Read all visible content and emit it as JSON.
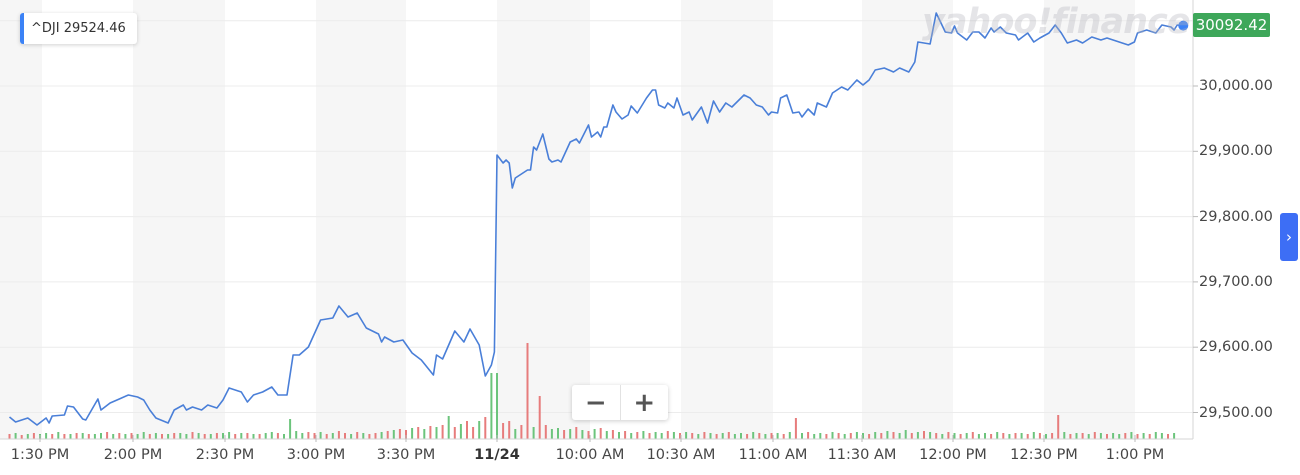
{
  "symbol_tooltip": "^DJI 29524.46",
  "last_price_label": "30092.42",
  "watermark": "yahoo!finance",
  "zoom_out_label": "−",
  "zoom_in_label": "+",
  "side_button_icon": "chevron-right-icon",
  "colors": {
    "line": "#4a7fd8",
    "up": "#6cc47c",
    "down": "#e77c7c",
    "last_tag": "#3ea75a",
    "accent": "#3d6ef5"
  },
  "chart_data": {
    "type": "line",
    "title": "",
    "ylim": [
      29460,
      30135
    ],
    "y_ticks": [
      "30,000.00",
      "29,900.00",
      "29,800.00",
      "29,700.00",
      "29,600.00",
      "29,500.00"
    ],
    "y_tick_values": [
      30000,
      29900,
      29800,
      29700,
      29600,
      29500
    ],
    "x_ticks": [
      "1:30 PM",
      "2:00 PM",
      "2:30 PM",
      "3:00 PM",
      "3:30 PM",
      "11/24",
      "10:00 AM",
      "10:30 AM",
      "11:00 AM",
      "11:30 AM",
      "12:00 PM",
      "12:30 PM",
      "1:00 PM"
    ],
    "grid": true,
    "last_value": 30092.42,
    "sessions": [
      {
        "points": [
          [
            "13:20",
            29493.1
          ],
          [
            "13:22",
            29485.4
          ],
          [
            "13:26",
            29491.6
          ],
          [
            "13:29",
            29480.9
          ],
          [
            "13:32",
            29491.6
          ],
          [
            "13:33",
            29483.9
          ],
          [
            "13:34",
            29494.6
          ],
          [
            "13:38",
            29496.2
          ],
          [
            "13:39",
            29509.9
          ],
          [
            "13:41",
            29508.4
          ],
          [
            "13:44",
            29490.0
          ],
          [
            "13:45",
            29488.5
          ],
          [
            "13:49",
            29520.7
          ],
          [
            "13:50",
            29503.8
          ],
          [
            "13:53",
            29514.5
          ],
          [
            "13:56",
            29520.7
          ],
          [
            "13:59",
            29526.8
          ],
          [
            "14:02",
            29523.7
          ],
          [
            "14:04",
            29519.1
          ],
          [
            "14:06",
            29503.8
          ],
          [
            "14:08",
            29491.6
          ],
          [
            "14:12",
            29483.9
          ],
          [
            "14:14",
            29503.8
          ],
          [
            "14:17",
            29511.5
          ],
          [
            "14:18",
            29503.8
          ],
          [
            "14:20",
            29508.4
          ],
          [
            "14:23",
            29503.8
          ],
          [
            "14:25",
            29511.5
          ],
          [
            "14:28",
            29506.9
          ],
          [
            "14:30",
            29519.1
          ],
          [
            "14:32",
            29537.5
          ],
          [
            "14:36",
            29531.4
          ],
          [
            "14:38",
            29516.1
          ],
          [
            "14:40",
            29526.8
          ],
          [
            "14:43",
            29531.4
          ],
          [
            "14:46",
            29539.0
          ],
          [
            "14:48",
            29526.8
          ],
          [
            "14:51",
            29526.8
          ],
          [
            "14:53",
            29588.0
          ],
          [
            "14:55",
            29588.0
          ],
          [
            "14:58",
            29600.3
          ],
          [
            "15:02",
            29641.7
          ],
          [
            "15:06",
            29644.7
          ],
          [
            "15:08",
            29663.1
          ],
          [
            "15:11",
            29646.2
          ],
          [
            "15:14",
            29652.4
          ],
          [
            "15:17",
            29629.4
          ],
          [
            "15:21",
            29620.2
          ],
          [
            "15:22",
            29608.0
          ],
          [
            "15:23",
            29615.6
          ],
          [
            "15:26",
            29608.0
          ],
          [
            "15:29",
            29611.0
          ],
          [
            "15:32",
            29591.1
          ],
          [
            "15:35",
            29580.4
          ],
          [
            "15:39",
            29557.4
          ],
          [
            "15:40",
            29588.0
          ],
          [
            "15:42",
            29581.9
          ],
          [
            "15:46",
            29624.8
          ],
          [
            "15:49",
            29608.0
          ],
          [
            "15:51",
            29627.9
          ],
          [
            "15:54",
            29603.4
          ],
          [
            "15:56",
            29555.9
          ],
          [
            "15:58",
            29572.7
          ],
          [
            "15:59",
            29592.6
          ]
        ],
        "volume_start": "13:20",
        "volume_interval_min": 2,
        "volume": [
          -5,
          6,
          -4,
          5,
          -6,
          5,
          6,
          -5,
          7,
          -5,
          5,
          -6,
          6,
          -5,
          5,
          6,
          -7,
          5,
          -6,
          5,
          -6,
          5,
          7,
          -5,
          6,
          -5,
          5,
          -6,
          6,
          5,
          -7,
          6,
          -5,
          5,
          -6,
          6,
          7,
          -5,
          6,
          -6,
          5,
          -5,
          6,
          7,
          -6,
          5,
          20,
          8,
          6,
          -7,
          -6,
          7,
          -5,
          6,
          -8,
          -6,
          5,
          -7,
          6,
          -5,
          -6,
          7,
          -8,
          9,
          -10,
          -9,
          11,
          -12,
          10,
          -13,
          12,
          -14,
          23,
          -12,
          15,
          -18,
          -12,
          18,
          -22,
          66
        ]
      },
      {
        "date": "11/24",
        "points": [
          [
            "09:30",
            29894.3
          ],
          [
            "09:32",
            29882.1
          ],
          [
            "09:33",
            29886.7
          ],
          [
            "09:34",
            29882.1
          ],
          [
            "09:35",
            29843.8
          ],
          [
            "09:36",
            29859.1
          ],
          [
            "09:40",
            29871.4
          ],
          [
            "09:41",
            29871.4
          ],
          [
            "09:42",
            29906.6
          ],
          [
            "09:43",
            29902.0
          ],
          [
            "09:45",
            29926.5
          ],
          [
            "09:47",
            29888.2
          ],
          [
            "09:48",
            29883.6
          ],
          [
            "09:50",
            29886.7
          ],
          [
            "09:51",
            29883.6
          ],
          [
            "09:54",
            29914.2
          ],
          [
            "09:56",
            29918.8
          ],
          [
            "09:57",
            29912.7
          ],
          [
            "10:00",
            29940.3
          ],
          [
            "10:01",
            29921.9
          ],
          [
            "10:03",
            29929.6
          ],
          [
            "10:04",
            29921.9
          ],
          [
            "10:05",
            29937.2
          ],
          [
            "10:06",
            29937.2
          ],
          [
            "10:08",
            29970.9
          ],
          [
            "10:09",
            29960.2
          ],
          [
            "10:11",
            29949.5
          ],
          [
            "10:13",
            29955.6
          ],
          [
            "10:14",
            29969.4
          ],
          [
            "10:16",
            29958.7
          ],
          [
            "10:19",
            29981.6
          ],
          [
            "10:21",
            29993.9
          ],
          [
            "10:22",
            29993.9
          ],
          [
            "10:23",
            29970.9
          ],
          [
            "10:25",
            29966.3
          ],
          [
            "10:26",
            29974.0
          ],
          [
            "10:28",
            29966.3
          ],
          [
            "10:29",
            29981.6
          ],
          [
            "10:31",
            29955.6
          ],
          [
            "10:33",
            29960.2
          ],
          [
            "10:34",
            29947.9
          ],
          [
            "10:37",
            29967.8
          ],
          [
            "10:39",
            29943.3
          ],
          [
            "10:41",
            29977.0
          ],
          [
            "10:43",
            29960.2
          ],
          [
            "10:45",
            29974.0
          ],
          [
            "10:47",
            29967.8
          ],
          [
            "10:50",
            29981.6
          ],
          [
            "10:51",
            29986.2
          ],
          [
            "10:53",
            29981.6
          ],
          [
            "10:55",
            29970.9
          ],
          [
            "10:57",
            29967.8
          ],
          [
            "10:59",
            29955.6
          ],
          [
            "11:00",
            29960.2
          ],
          [
            "11:02",
            29958.7
          ],
          [
            "11:03",
            29981.6
          ],
          [
            "11:05",
            29986.2
          ],
          [
            "11:07",
            29958.7
          ],
          [
            "11:09",
            29960.2
          ],
          [
            "11:10",
            29952.5
          ],
          [
            "11:12",
            29964.8
          ],
          [
            "11:14",
            29955.6
          ],
          [
            "11:15",
            29974.0
          ],
          [
            "11:18",
            29967.8
          ],
          [
            "11:20",
            29989.3
          ],
          [
            "11:23",
            29998.5
          ],
          [
            "11:25",
            29993.9
          ],
          [
            "11:28",
            30009.2
          ],
          [
            "11:30",
            30001.5
          ],
          [
            "11:32",
            30009.2
          ],
          [
            "11:34",
            30024.5
          ],
          [
            "11:37",
            30027.6
          ],
          [
            "11:40",
            30021.4
          ],
          [
            "11:42",
            30027.6
          ],
          [
            "11:45",
            30021.4
          ],
          [
            "11:47",
            30036.8
          ],
          [
            "11:48",
            30067.4
          ],
          [
            "11:52",
            30064.3
          ],
          [
            "11:54",
            30111.8
          ],
          [
            "11:57",
            30082.7
          ],
          [
            "11:59",
            30081.2
          ],
          [
            "12:00",
            30091.9
          ],
          [
            "12:01",
            30081.2
          ],
          [
            "12:04",
            30070.4
          ],
          [
            "12:06",
            30082.7
          ],
          [
            "12:08",
            30082.7
          ],
          [
            "12:10",
            30073.5
          ],
          [
            "12:12",
            30088.8
          ],
          [
            "12:13",
            30082.7
          ],
          [
            "12:15",
            30090.4
          ],
          [
            "12:17",
            30081.2
          ],
          [
            "12:20",
            30078.1
          ],
          [
            "12:21",
            30070.4
          ],
          [
            "12:24",
            30081.2
          ],
          [
            "12:26",
            30067.4
          ],
          [
            "12:28",
            30073.5
          ],
          [
            "12:31",
            30081.2
          ],
          [
            "12:33",
            30093.4
          ],
          [
            "12:35",
            30081.2
          ],
          [
            "12:37",
            30065.9
          ],
          [
            "12:40",
            30070.4
          ],
          [
            "12:42",
            30065.9
          ],
          [
            "12:45",
            30075.0
          ],
          [
            "12:48",
            30070.4
          ],
          [
            "12:50",
            30073.5
          ],
          [
            "12:54",
            30067.4
          ],
          [
            "12:57",
            30062.8
          ],
          [
            "12:59",
            30067.4
          ],
          [
            "13:00",
            30081.2
          ],
          [
            "13:03",
            30085.8
          ],
          [
            "13:06",
            30081.2
          ],
          [
            "13:08",
            30093.4
          ],
          [
            "13:11",
            30090.4
          ],
          [
            "13:12",
            30085.8
          ],
          [
            "13:13",
            30093.4
          ],
          [
            "13:15",
            30092.42
          ]
        ],
        "volume_start": "09:30",
        "volume_interval_min": 2,
        "volume": [
          66,
          -16,
          -18,
          10,
          -14,
          -96,
          12,
          -43,
          -14,
          10,
          11,
          -9,
          10,
          -12,
          9,
          -8,
          10,
          -11,
          8,
          -9,
          7,
          -8,
          6,
          -7,
          8,
          -6,
          7,
          6,
          -8,
          7,
          -6,
          7,
          -6,
          5,
          -7,
          6,
          -5,
          6,
          -7,
          5,
          6,
          -5,
          7,
          -6,
          5,
          -6,
          6,
          -5,
          7,
          -21,
          6,
          -7,
          5,
          6,
          -5,
          7,
          -6,
          5,
          -6,
          7,
          6,
          -5,
          7,
          -6,
          8,
          -7,
          6,
          9,
          -6,
          7,
          -8,
          7,
          -6,
          5,
          -7,
          6,
          -5,
          6,
          -7,
          5,
          6,
          -5,
          7,
          -6,
          5,
          -6,
          6,
          -5,
          7,
          -6,
          5,
          -6,
          -24,
          7,
          -5,
          6,
          -6,
          5,
          -7,
          6,
          -5,
          6,
          5,
          -6,
          7,
          -5,
          6,
          -5,
          7,
          6,
          -5,
          6
        ]
      }
    ]
  }
}
